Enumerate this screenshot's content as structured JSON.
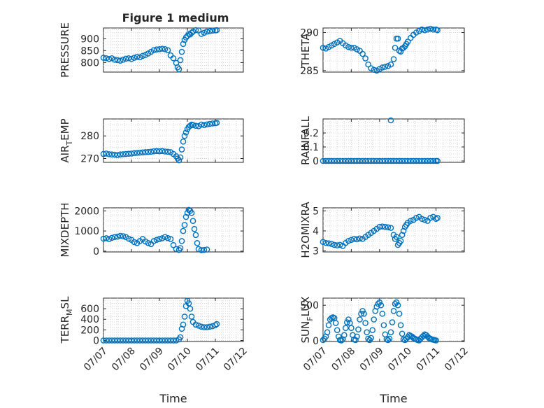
{
  "figure_title": "Figure 1 medium",
  "colors": {
    "marker": "#0072BD",
    "axis": "#262626",
    "grid": "#d6d6d6"
  },
  "chart_data": [
    {
      "type": "scatter",
      "title": "Figure 1 medium",
      "ylabel": {
        "main": "PRESSURE",
        "sub": "",
        "tail": ""
      },
      "xlabel": "",
      "show_xticklabels": false,
      "xlim": [
        0,
        5
      ],
      "ylim": [
        760,
        945
      ],
      "yticks": [
        800,
        850,
        900
      ],
      "xticks": [
        0,
        1,
        2,
        3,
        4,
        5
      ],
      "xticklabels": [
        "07/07",
        "07/08",
        "07/09",
        "07/10",
        "07/11",
        "07/12"
      ],
      "grid": true,
      "minor_grid": true,
      "series": [
        {
          "x": [
            0.0,
            0.1,
            0.2,
            0.3,
            0.4,
            0.5,
            0.6,
            0.7,
            0.8,
            0.9,
            1.0,
            1.1,
            1.2,
            1.3,
            1.4,
            1.5,
            1.6,
            1.7,
            1.8,
            1.9,
            2.0,
            2.1,
            2.2,
            2.3,
            2.4,
            2.5,
            2.6,
            2.65,
            2.7,
            2.75,
            2.8,
            2.85,
            2.9,
            2.95,
            3.0,
            3.05,
            3.1,
            3.15,
            3.2,
            3.3,
            3.4,
            3.5,
            3.6,
            3.7,
            3.8,
            3.9,
            4.0,
            4.05
          ],
          "y": [
            820,
            818,
            815,
            818,
            812,
            810,
            808,
            812,
            816,
            818,
            815,
            820,
            824,
            822,
            828,
            832,
            838,
            845,
            852,
            855,
            856,
            858,
            856,
            852,
            830,
            818,
            798,
            780,
            772,
            810,
            845,
            878,
            895,
            905,
            912,
            920,
            918,
            925,
            930,
            936,
            935,
            920,
            925,
            930,
            932,
            934,
            935,
            936
          ]
        }
      ]
    },
    {
      "type": "scatter",
      "title": "",
      "ylabel": {
        "main": "THETA",
        "sub": "",
        "tail": ""
      },
      "xlabel": "",
      "show_xticklabels": false,
      "xlim": [
        0,
        5
      ],
      "ylim": [
        284.8,
        290.6
      ],
      "yticks": [
        285,
        290
      ],
      "xticks": [
        0,
        1,
        2,
        3,
        4,
        5
      ],
      "xticklabels": [
        "07/07",
        "07/08",
        "07/09",
        "07/10",
        "07/11",
        "07/12"
      ],
      "grid": true,
      "minor_grid": true,
      "series": [
        {
          "x": [
            0.0,
            0.1,
            0.2,
            0.3,
            0.4,
            0.5,
            0.6,
            0.7,
            0.8,
            0.9,
            1.0,
            1.1,
            1.2,
            1.3,
            1.4,
            1.5,
            1.6,
            1.7,
            1.8,
            1.9,
            2.0,
            2.1,
            2.2,
            2.3,
            2.4,
            2.5,
            2.55,
            2.6,
            2.65,
            2.7,
            2.75,
            2.8,
            2.85,
            2.9,
            2.95,
            3.0,
            3.1,
            3.2,
            3.3,
            3.4,
            3.5,
            3.6,
            3.7,
            3.8,
            3.9,
            4.0,
            4.05
          ],
          "y": [
            288.0,
            287.9,
            288.1,
            288.3,
            288.5,
            288.7,
            288.9,
            288.6,
            288.3,
            288.1,
            288.0,
            288.0,
            287.8,
            287.6,
            287.2,
            286.6,
            285.8,
            285.3,
            285.1,
            285.0,
            285.2,
            285.4,
            285.5,
            285.6,
            285.8,
            286.5,
            288.0,
            289.2,
            289.2,
            287.6,
            287.5,
            287.9,
            288.0,
            288.2,
            288.5,
            288.8,
            289.3,
            289.7,
            290.0,
            290.2,
            290.4,
            290.3,
            290.4,
            290.5,
            290.4,
            290.4,
            290.3
          ]
        }
      ]
    },
    {
      "type": "scatter",
      "title": "",
      "ylabel": {
        "main": "AIR",
        "sub": "T",
        "tail": "EMP"
      },
      "xlabel": "",
      "show_xticklabels": false,
      "xlim": [
        0,
        5
      ],
      "ylim": [
        268.3,
        287.5
      ],
      "yticks": [
        270,
        280
      ],
      "xticks": [
        0,
        1,
        2,
        3,
        4,
        5
      ],
      "xticklabels": [
        "07/07",
        "07/08",
        "07/09",
        "07/10",
        "07/11",
        "07/12"
      ],
      "grid": true,
      "minor_grid": true,
      "series": [
        {
          "x": [
            0.0,
            0.1,
            0.2,
            0.3,
            0.4,
            0.5,
            0.6,
            0.7,
            0.8,
            0.9,
            1.0,
            1.1,
            1.2,
            1.3,
            1.4,
            1.5,
            1.6,
            1.7,
            1.8,
            1.9,
            2.0,
            2.1,
            2.2,
            2.3,
            2.4,
            2.5,
            2.6,
            2.65,
            2.7,
            2.75,
            2.8,
            2.85,
            2.9,
            2.95,
            3.0,
            3.05,
            3.1,
            3.15,
            3.2,
            3.3,
            3.4,
            3.5,
            3.6,
            3.7,
            3.8,
            3.9,
            4.0,
            4.05
          ],
          "y": [
            272.0,
            272.2,
            271.9,
            271.8,
            271.7,
            271.5,
            271.8,
            271.9,
            272.0,
            272.1,
            272.2,
            272.4,
            272.5,
            272.6,
            272.7,
            272.8,
            272.9,
            273.0,
            273.2,
            273.3,
            273.2,
            273.3,
            273.1,
            273.0,
            272.8,
            272.0,
            271.0,
            270.0,
            269.2,
            270.5,
            274.0,
            277.5,
            280.0,
            281.5,
            283.0,
            284.0,
            284.5,
            285.0,
            284.8,
            284.5,
            284.3,
            285.0,
            284.8,
            285.1,
            285.3,
            285.5,
            285.6,
            285.8
          ]
        }
      ]
    },
    {
      "type": "scatter",
      "title": "",
      "ylabel": {
        "main": "RAINFALL",
        "sub": "",
        "tail": ""
      },
      "xlabel": "",
      "show_xticklabels": false,
      "xlim": [
        0,
        5
      ],
      "ylim": [
        -0.01,
        0.3
      ],
      "yticks": [
        0,
        0.1,
        0.2
      ],
      "xticks": [
        0,
        1,
        2,
        3,
        4,
        5
      ],
      "xticklabels": [
        "07/07",
        "07/08",
        "07/09",
        "07/10",
        "07/11",
        "07/12"
      ],
      "grid": true,
      "minor_grid": true,
      "series": [
        {
          "x": [
            0.0,
            0.1,
            0.2,
            0.3,
            0.4,
            0.5,
            0.6,
            0.7,
            0.8,
            0.9,
            1.0,
            1.1,
            1.2,
            1.3,
            1.4,
            1.5,
            1.6,
            1.7,
            1.8,
            1.9,
            2.0,
            2.1,
            2.2,
            2.3,
            2.4,
            2.5,
            2.6,
            2.7,
            2.8,
            2.9,
            3.0,
            3.1,
            3.2,
            3.3,
            3.4,
            3.5,
            3.6,
            3.7,
            3.8,
            3.9,
            4.0,
            4.05,
            2.4
          ],
          "y": [
            0,
            0,
            0,
            0,
            0,
            0,
            0,
            0,
            0,
            0,
            0,
            0,
            0,
            0,
            0,
            0,
            0,
            0,
            0,
            0,
            0,
            0,
            0,
            0,
            0,
            0,
            0,
            0,
            0,
            0,
            0,
            0,
            0,
            0,
            0,
            0,
            0,
            0,
            0,
            0,
            0,
            0,
            0.29
          ]
        }
      ]
    },
    {
      "type": "scatter",
      "title": "",
      "ylabel": {
        "main": "MIXDEPTH",
        "sub": "",
        "tail": ""
      },
      "xlabel": "",
      "show_xticklabels": false,
      "xlim": [
        0,
        5
      ],
      "ylim": [
        -40,
        2150
      ],
      "yticks": [
        0,
        1000,
        2000
      ],
      "xticks": [
        0,
        1,
        2,
        3,
        4,
        5
      ],
      "xticklabels": [
        "07/07",
        "07/08",
        "07/09",
        "07/10",
        "07/11",
        "07/12"
      ],
      "grid": true,
      "minor_grid": true,
      "series": [
        {
          "x": [
            0.0,
            0.1,
            0.2,
            0.3,
            0.4,
            0.5,
            0.6,
            0.7,
            0.8,
            0.9,
            1.0,
            1.1,
            1.2,
            1.3,
            1.4,
            1.5,
            1.6,
            1.7,
            1.8,
            1.9,
            2.0,
            2.1,
            2.2,
            2.3,
            2.4,
            2.5,
            2.6,
            2.7,
            2.75,
            2.8,
            2.85,
            2.9,
            2.95,
            3.0,
            3.05,
            3.1,
            3.15,
            3.2,
            3.25,
            3.3,
            3.35,
            3.4,
            3.5,
            3.6,
            3.7
          ],
          "y": [
            620,
            640,
            600,
            660,
            700,
            720,
            760,
            740,
            700,
            620,
            560,
            450,
            400,
            500,
            600,
            480,
            400,
            350,
            500,
            560,
            600,
            640,
            700,
            650,
            600,
            300,
            100,
            60,
            150,
            500,
            1000,
            1300,
            1700,
            1900,
            2050,
            2000,
            1900,
            1500,
            1100,
            800,
            400,
            100,
            50,
            60,
            80
          ]
        }
      ]
    },
    {
      "type": "scatter",
      "title": "",
      "ylabel": {
        "main": "H2OMIXRA",
        "sub": "",
        "tail": ""
      },
      "xlabel": "",
      "show_xticklabels": false,
      "xlim": [
        0,
        5
      ],
      "ylim": [
        2.95,
        5.15
      ],
      "yticks": [
        3,
        4,
        5
      ],
      "xticks": [
        0,
        1,
        2,
        3,
        4,
        5
      ],
      "xticklabels": [
        "07/07",
        "07/08",
        "07/09",
        "07/10",
        "07/11",
        "07/12"
      ],
      "grid": true,
      "minor_grid": true,
      "series": [
        {
          "x": [
            0.0,
            0.1,
            0.2,
            0.3,
            0.4,
            0.5,
            0.6,
            0.7,
            0.8,
            0.9,
            1.0,
            1.1,
            1.2,
            1.3,
            1.4,
            1.5,
            1.6,
            1.7,
            1.8,
            1.9,
            2.0,
            2.1,
            2.2,
            2.3,
            2.4,
            2.5,
            2.55,
            2.6,
            2.65,
            2.7,
            2.75,
            2.8,
            2.85,
            2.9,
            2.95,
            3.0,
            3.1,
            3.2,
            3.3,
            3.4,
            3.5,
            3.6,
            3.7,
            3.8,
            3.9,
            4.0,
            4.05
          ],
          "y": [
            3.45,
            3.4,
            3.38,
            3.35,
            3.3,
            3.28,
            3.3,
            3.25,
            3.4,
            3.5,
            3.55,
            3.6,
            3.58,
            3.62,
            3.6,
            3.7,
            3.8,
            3.9,
            4.0,
            4.1,
            4.2,
            4.22,
            4.2,
            4.18,
            4.15,
            3.8,
            3.6,
            3.7,
            3.3,
            3.4,
            3.5,
            3.8,
            4.0,
            4.2,
            4.3,
            4.4,
            4.5,
            4.55,
            4.65,
            4.7,
            4.6,
            4.55,
            4.5,
            4.65,
            4.7,
            4.6,
            4.65
          ]
        }
      ]
    },
    {
      "type": "scatter",
      "title": "",
      "ylabel": {
        "main": "TERR",
        "sub": "M",
        "tail": "SL"
      },
      "xlabel": "Time",
      "show_xticklabels": true,
      "xlim": [
        0,
        5
      ],
      "ylim": [
        -20,
        800
      ],
      "yticks": [
        0,
        200,
        400,
        600
      ],
      "xticks": [
        0,
        1,
        2,
        3,
        4,
        5
      ],
      "xticklabels": [
        "07/07",
        "07/08",
        "07/09",
        "07/10",
        "07/11",
        "07/12"
      ],
      "grid": true,
      "minor_grid": true,
      "series": [
        {
          "x": [
            0.0,
            0.1,
            0.2,
            0.3,
            0.4,
            0.5,
            0.6,
            0.7,
            0.8,
            0.9,
            1.0,
            1.1,
            1.2,
            1.3,
            1.4,
            1.5,
            1.6,
            1.7,
            1.8,
            1.9,
            2.0,
            2.1,
            2.2,
            2.3,
            2.4,
            2.5,
            2.6,
            2.7,
            2.75,
            2.8,
            2.85,
            2.9,
            2.95,
            3.0,
            3.05,
            3.1,
            3.15,
            3.2,
            3.3,
            3.4,
            3.5,
            3.6,
            3.7,
            3.8,
            3.9,
            4.0,
            4.05
          ],
          "y": [
            0,
            0,
            0,
            0,
            0,
            0,
            0,
            0,
            0,
            0,
            0,
            0,
            0,
            0,
            0,
            0,
            0,
            0,
            0,
            0,
            0,
            0,
            0,
            0,
            0,
            0,
            0,
            20,
            60,
            220,
            300,
            450,
            650,
            750,
            700,
            600,
            450,
            350,
            300,
            280,
            260,
            250,
            250,
            260,
            270,
            290,
            310
          ]
        }
      ]
    },
    {
      "type": "scatter",
      "title": "",
      "ylabel": {
        "main": "SUN",
        "sub": "F",
        "tail": "LUX"
      },
      "xlabel": "Time",
      "show_xticklabels": true,
      "xlim": [
        0,
        5
      ],
      "ylim": [
        -10,
        600
      ],
      "yticks": [
        0,
        500
      ],
      "xticks": [
        0,
        1,
        2,
        3,
        4,
        5
      ],
      "xticklabels": [
        "07/07",
        "07/08",
        "07/09",
        "07/10",
        "07/11",
        "07/12"
      ],
      "grid": true,
      "minor_grid": true,
      "series": [
        {
          "x": [
            0.0,
            0.05,
            0.1,
            0.15,
            0.2,
            0.25,
            0.3,
            0.35,
            0.4,
            0.45,
            0.5,
            0.55,
            0.6,
            0.65,
            0.7,
            0.75,
            0.8,
            0.85,
            0.9,
            0.95,
            1.0,
            1.05,
            1.1,
            1.15,
            1.2,
            1.25,
            1.3,
            1.35,
            1.4,
            1.45,
            1.5,
            1.55,
            1.6,
            1.65,
            1.7,
            1.75,
            1.8,
            1.85,
            1.9,
            1.95,
            2.0,
            2.05,
            2.1,
            2.15,
            2.2,
            2.25,
            2.3,
            2.35,
            2.4,
            2.45,
            2.5,
            2.55,
            2.6,
            2.65,
            2.7,
            2.75,
            2.8,
            2.85,
            2.9,
            2.95,
            3.0,
            3.05,
            3.1,
            3.15,
            3.2,
            3.25,
            3.3,
            3.35,
            3.4,
            3.45,
            3.5,
            3.55,
            3.6,
            3.65,
            3.7,
            3.75,
            3.8,
            3.85,
            3.9,
            3.95,
            4.0
          ],
          "y": [
            10,
            30,
            60,
            120,
            220,
            300,
            320,
            330,
            320,
            250,
            150,
            60,
            10,
            5,
            20,
            80,
            180,
            260,
            300,
            250,
            180,
            80,
            20,
            10,
            60,
            160,
            300,
            380,
            420,
            380,
            250,
            120,
            30,
            10,
            40,
            150,
            300,
            420,
            480,
            520,
            540,
            500,
            380,
            220,
            90,
            20,
            10,
            30,
            120,
            260,
            420,
            520,
            540,
            500,
            380,
            220,
            100,
            20,
            10,
            30,
            50,
            80,
            70,
            60,
            40,
            30,
            20,
            10,
            5,
            30,
            50,
            70,
            90,
            80,
            60,
            40,
            30,
            20,
            15,
            10,
            5
          ]
        }
      ]
    }
  ]
}
